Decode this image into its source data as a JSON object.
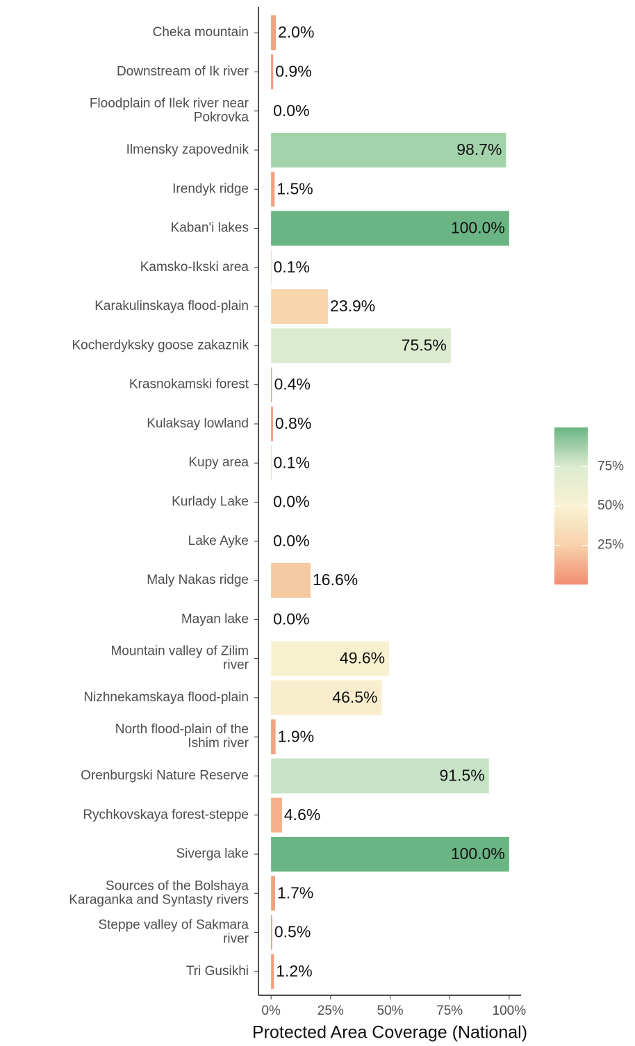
{
  "chart_data": {
    "type": "barh",
    "x_label": "Protected Area Coverage (National)",
    "categories": [
      "Cheka mountain",
      "Downstream of Ik river",
      "Floodplain of Ilek river near\nPokrovka",
      "Ilmensky zapovednik",
      "Irendyk ridge",
      "Kaban'i lakes",
      "Kamsko-Ikski area",
      "Karakulinskaya flood-plain",
      "Kocherdyksky goose zakaznik",
      "Krasnokamski forest",
      "Kulaksay lowland",
      "Kupy area",
      "Kurlady Lake",
      "Lake Ayke",
      "Maly Nakas ridge",
      "Mayan lake",
      "Mountain valley of Zilim\nriver",
      "Nizhnekamskaya flood-plain",
      "North flood-plain of the\nIshim river",
      "Orenburgski Nature Reserve",
      "Rychkovskaya forest-steppe",
      "Siverga lake",
      "Sources of the Bolshaya\nKaraganka and Syntasty rivers",
      "Steppe valley of Sakmara\nriver",
      "Tri Gusikhi"
    ],
    "values": [
      2.0,
      0.9,
      0.0,
      98.7,
      1.5,
      100.0,
      0.1,
      23.9,
      75.5,
      0.4,
      0.8,
      0.1,
      0.0,
      0.0,
      16.6,
      0.0,
      49.6,
      46.5,
      1.9,
      91.5,
      4.6,
      100.0,
      1.7,
      0.5,
      1.2
    ],
    "value_labels": [
      "2.0%",
      "0.9%",
      "0.0%",
      "98.7%",
      "1.5%",
      "100.0%",
      "0.1%",
      "23.9%",
      "75.5%",
      "0.4%",
      "0.8%",
      "0.1%",
      "0.0%",
      "0.0%",
      "16.6%",
      "0.0%",
      "49.6%",
      "46.5%",
      "1.9%",
      "91.5%",
      "4.6%",
      "100.0%",
      "1.7%",
      "0.5%",
      "1.2%"
    ],
    "colors": [
      "#f4a380",
      "#f39a7c",
      "#f28c72",
      "#a3d3aa",
      "#f49f7e",
      "#6ab583",
      "#f28d72",
      "#f7d5ad",
      "#dcebd0",
      "#f29276",
      "#f39a7b",
      "#f28d72",
      "#f28c72",
      "#f28c72",
      "#f5c9a2",
      "#f28c72",
      "#f8f1d0",
      "#f8eecd",
      "#f4a380",
      "#c6e3c6",
      "#f4b08a",
      "#6ab583",
      "#f4a17f",
      "#f29477",
      "#f49d7d"
    ],
    "xlim": [
      -5,
      105
    ],
    "xticks": [
      {
        "value": 0,
        "label": "0%"
      },
      {
        "value": 25,
        "label": "25%"
      },
      {
        "value": 50,
        "label": "50%"
      },
      {
        "value": 75,
        "label": "75%"
      },
      {
        "value": 100,
        "label": "100%"
      }
    ],
    "colorbar": {
      "lim": [
        0,
        100
      ],
      "colors": [
        "#f28c72",
        "#f7d2aa",
        "#f9f2d3",
        "#dcebd0",
        "#6ab583"
      ],
      "ticks": [
        {
          "value": 25,
          "label": "25%"
        },
        {
          "value": 50,
          "label": "50%"
        },
        {
          "value": 75,
          "label": "75%"
        }
      ]
    }
  }
}
